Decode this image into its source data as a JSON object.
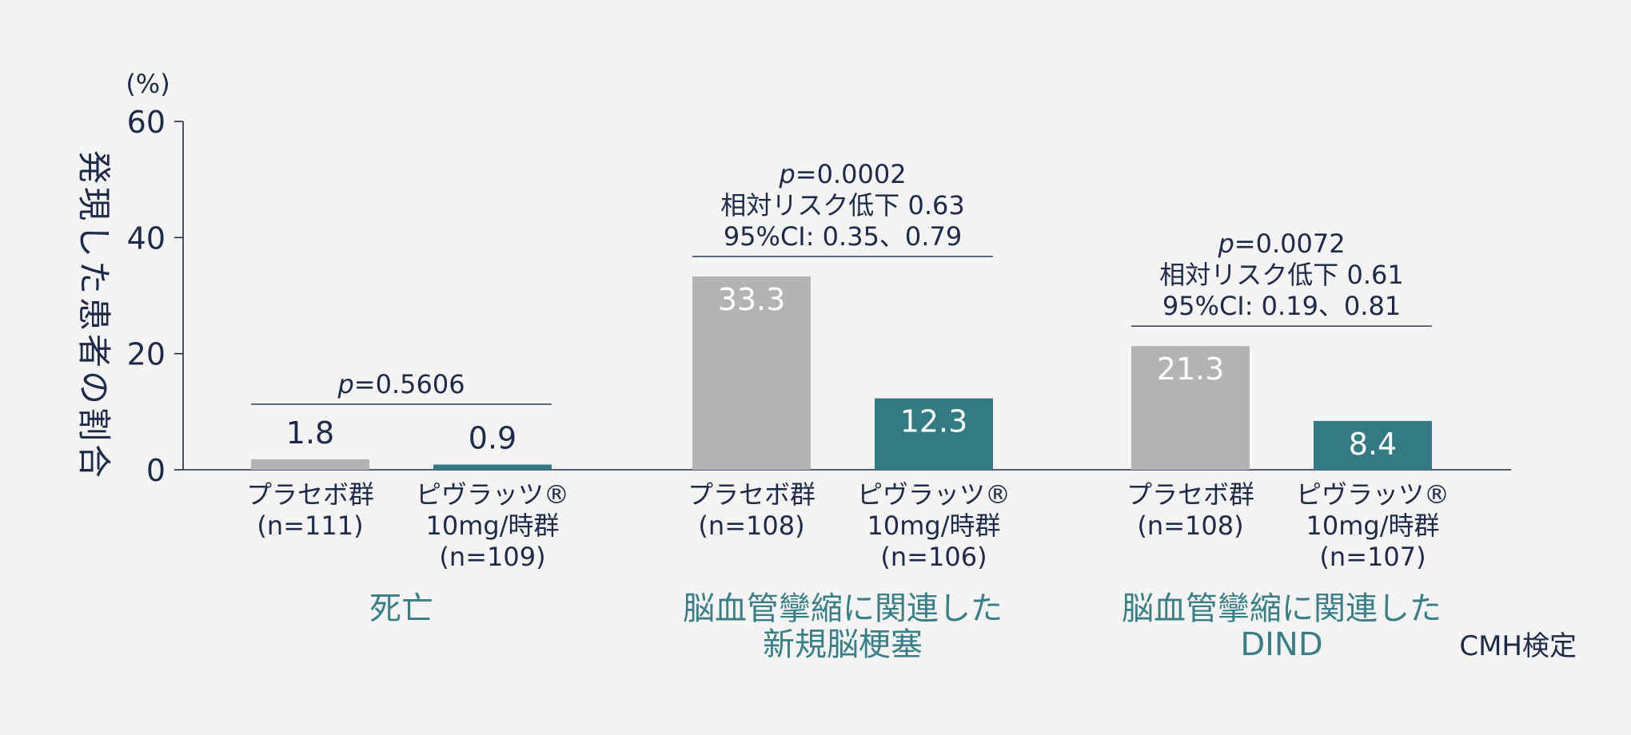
{
  "chart_data": {
    "type": "bar",
    "ylabel": "発現した患者の割合",
    "yunit": "(%)",
    "ylim": [
      0,
      60
    ],
    "yticks": [
      "0",
      "20",
      "40",
      "60"
    ],
    "groups": [
      {
        "label": "死亡",
        "bars": [
          {
            "label_lines": [
              "プラセボ群",
              "(n=111)"
            ],
            "value": 1.8,
            "value_label": "1.8",
            "series": "placebo"
          },
          {
            "label_lines": [
              "ピヴラッツ®",
              "10mg/時群",
              "(n=109)"
            ],
            "value": 0.9,
            "value_label": "0.9",
            "series": "drug"
          }
        ],
        "annotation": {
          "p_symbol": "p",
          "p_value": "=0.5606",
          "lines": []
        }
      },
      {
        "label": "脳血管攣縮に関連した新規脳梗塞",
        "label_lines": [
          "脳血管攣縮に関連した",
          "新規脳梗塞"
        ],
        "bars": [
          {
            "label_lines": [
              "プラセボ群",
              "(n=108)"
            ],
            "value": 33.3,
            "value_label": "33.3",
            "series": "placebo"
          },
          {
            "label_lines": [
              "ピヴラッツ®",
              "10mg/時群",
              "(n=106)"
            ],
            "value": 12.3,
            "value_label": "12.3",
            "series": "drug"
          }
        ],
        "annotation": {
          "p_symbol": "p",
          "p_value": "=0.0002",
          "lines": [
            "相対リスク低下 0.63",
            "95%CI: 0.35、0.79"
          ]
        }
      },
      {
        "label": "脳血管攣縮に関連したDIND",
        "label_lines": [
          "脳血管攣縮に関連した",
          "DIND"
        ],
        "bars": [
          {
            "label_lines": [
              "プラセボ群",
              "(n=108)"
            ],
            "value": 21.3,
            "value_label": "21.3",
            "series": "placebo"
          },
          {
            "label_lines": [
              "ピヴラッツ®",
              "10mg/時群",
              "(n=107)"
            ],
            "value": 8.4,
            "value_label": "8.4",
            "series": "drug"
          }
        ],
        "annotation": {
          "p_symbol": "p",
          "p_value": "=0.0072",
          "lines": [
            "相対リスク低下 0.61",
            "95%CI: 0.19、0.81"
          ]
        }
      }
    ],
    "footnote": "CMH検定",
    "colors": {
      "placebo": "#b3b3b3",
      "drug": "#327a84",
      "text": "#1e2a4a",
      "group_label": "#3a7f87",
      "axis": "#1e2a4a"
    }
  }
}
